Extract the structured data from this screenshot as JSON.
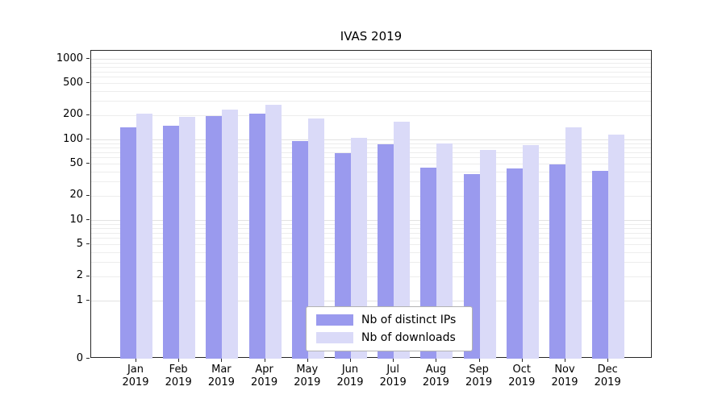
{
  "chart_data": {
    "type": "bar",
    "title": "IVAS 2019",
    "categories": [
      "Jan",
      "Feb",
      "Mar",
      "Apr",
      "May",
      "Jun",
      "Jul",
      "Aug",
      "Sep",
      "Oct",
      "Nov",
      "Dec"
    ],
    "year": "2019",
    "series": [
      {
        "name": "Nb of distinct IPs",
        "color": "#9a9aee",
        "values": [
          140,
          148,
          197,
          207,
          95,
          68,
          88,
          45,
          37,
          44,
          49,
          41
        ]
      },
      {
        "name": "Nb of downloads",
        "color": "#dadaf8",
        "values": [
          210,
          190,
          235,
          270,
          183,
          105,
          165,
          90,
          75,
          85,
          140,
          115
        ]
      }
    ],
    "yscale": "symlog",
    "yticks": [
      1000,
      500,
      200,
      100,
      50,
      20,
      10,
      5,
      2,
      1,
      0
    ],
    "ylim": [
      0,
      1259
    ],
    "xlabel": "",
    "ylabel": "",
    "grid": true,
    "legend_position": "lower center"
  },
  "colors": {
    "grid": "#ededed",
    "axis": "#262626",
    "background": "#ffffff"
  }
}
